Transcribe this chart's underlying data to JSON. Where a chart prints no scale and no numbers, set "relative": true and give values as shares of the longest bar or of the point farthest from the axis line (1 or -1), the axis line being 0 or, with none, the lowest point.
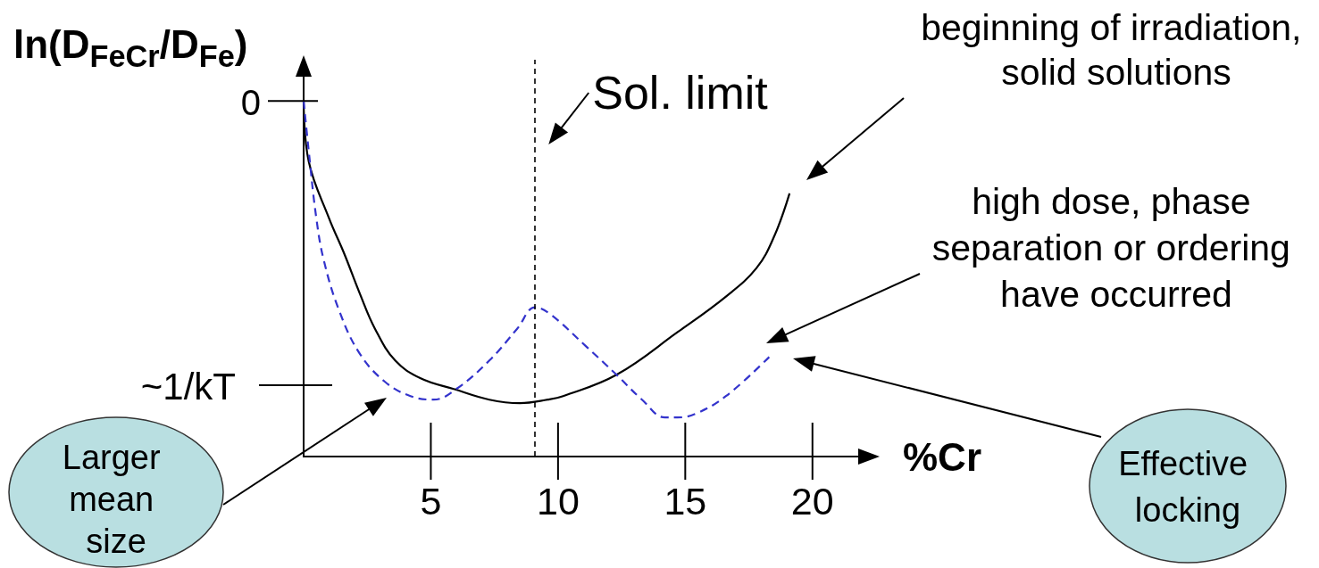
{
  "chart_data": {
    "type": "line",
    "relative": true,
    "xlabel": "%Cr",
    "ylabel": "ln(D$_{FeCr}$/D$_{Fe}$)",
    "xlim": [
      0,
      22.5
    ],
    "xticks": [
      5,
      10,
      15,
      20
    ],
    "marker": "none",
    "series": [
      {
        "color": "#000000",
        "line_style": "solid",
        "x": [
          0,
          0.2,
          1.0,
          1.6,
          2.2,
          2.8,
          3.6,
          4.6,
          5.9,
          7.3,
          8.5,
          9.6,
          10.2,
          12.3,
          14.7,
          16.6,
          17.8,
          18.5,
          19.1
        ],
        "values": [
          1,
          0.83,
          0.67,
          0.57,
          0.46,
          0.36,
          0.27,
          0.22,
          0.19,
          0.16,
          0.15,
          0.16,
          0.17,
          0.23,
          0.35,
          0.45,
          0.53,
          0.62,
          0.74
        ]
      },
      {
        "color": "#3333cc",
        "line_style": "dashed",
        "x": [
          0,
          0.2,
          0.5,
          0.8,
          1.4,
          2.2,
          3.2,
          4.2,
          5.1,
          6.0,
          7.3,
          8.4,
          9.1,
          9.7,
          11.1,
          12.3,
          13.3,
          14.2,
          14.7,
          15.4,
          16.6,
          18.3
        ],
        "values": [
          1,
          0.86,
          0.67,
          0.55,
          0.41,
          0.29,
          0.21,
          0.17,
          0.16,
          0.19,
          0.27,
          0.36,
          0.42,
          0.4,
          0.31,
          0.23,
          0.16,
          0.11,
          0.11,
          0.12,
          0.17,
          0.28
        ]
      }
    ],
    "ref_lines": [
      {
        "axis": "x",
        "value": 9.1,
        "label": "Sol. limit",
        "line_style": "dashed",
        "color": "#000000"
      }
    ],
    "annotations": [
      {
        "text": "0",
        "x": 0,
        "y": 1
      },
      "~1/kT",
      "beginning of irradiation, solid solutions",
      "high dose, phase separation or ordering have occurred",
      "Effective locking",
      "Larger mean size"
    ]
  }
}
